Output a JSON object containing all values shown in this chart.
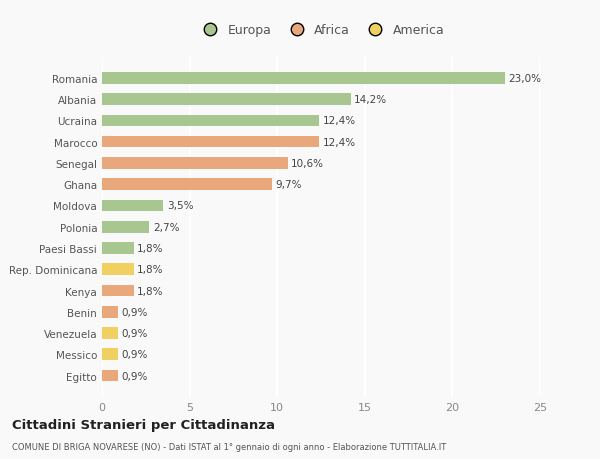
{
  "categories": [
    "Romania",
    "Albania",
    "Ucraina",
    "Marocco",
    "Senegal",
    "Ghana",
    "Moldova",
    "Polonia",
    "Paesi Bassi",
    "Rep. Dominicana",
    "Kenya",
    "Benin",
    "Venezuela",
    "Messico",
    "Egitto"
  ],
  "values": [
    23.0,
    14.2,
    12.4,
    12.4,
    10.6,
    9.7,
    3.5,
    2.7,
    1.8,
    1.8,
    1.8,
    0.9,
    0.9,
    0.9,
    0.9
  ],
  "labels": [
    "23,0%",
    "14,2%",
    "12,4%",
    "12,4%",
    "10,6%",
    "9,7%",
    "3,5%",
    "2,7%",
    "1,8%",
    "1,8%",
    "1,8%",
    "0,9%",
    "0,9%",
    "0,9%",
    "0,9%"
  ],
  "continents": [
    "Europa",
    "Europa",
    "Europa",
    "Africa",
    "Africa",
    "Africa",
    "Europa",
    "Europa",
    "Europa",
    "America",
    "Africa",
    "Africa",
    "America",
    "America",
    "Africa"
  ],
  "colors": {
    "Europa": "#a8c68f",
    "Africa": "#e8a87c",
    "America": "#f0d060"
  },
  "xlim": [
    0,
    25
  ],
  "xticks": [
    0,
    5,
    10,
    15,
    20,
    25
  ],
  "title": "Cittadini Stranieri per Cittadinanza",
  "subtitle": "COMUNE DI BRIGA NOVARESE (NO) - Dati ISTAT al 1° gennaio di ogni anno - Elaborazione TUTTITALIA.IT",
  "background_color": "#f9f9f9",
  "grid_color": "#ffffff",
  "bar_height": 0.55
}
